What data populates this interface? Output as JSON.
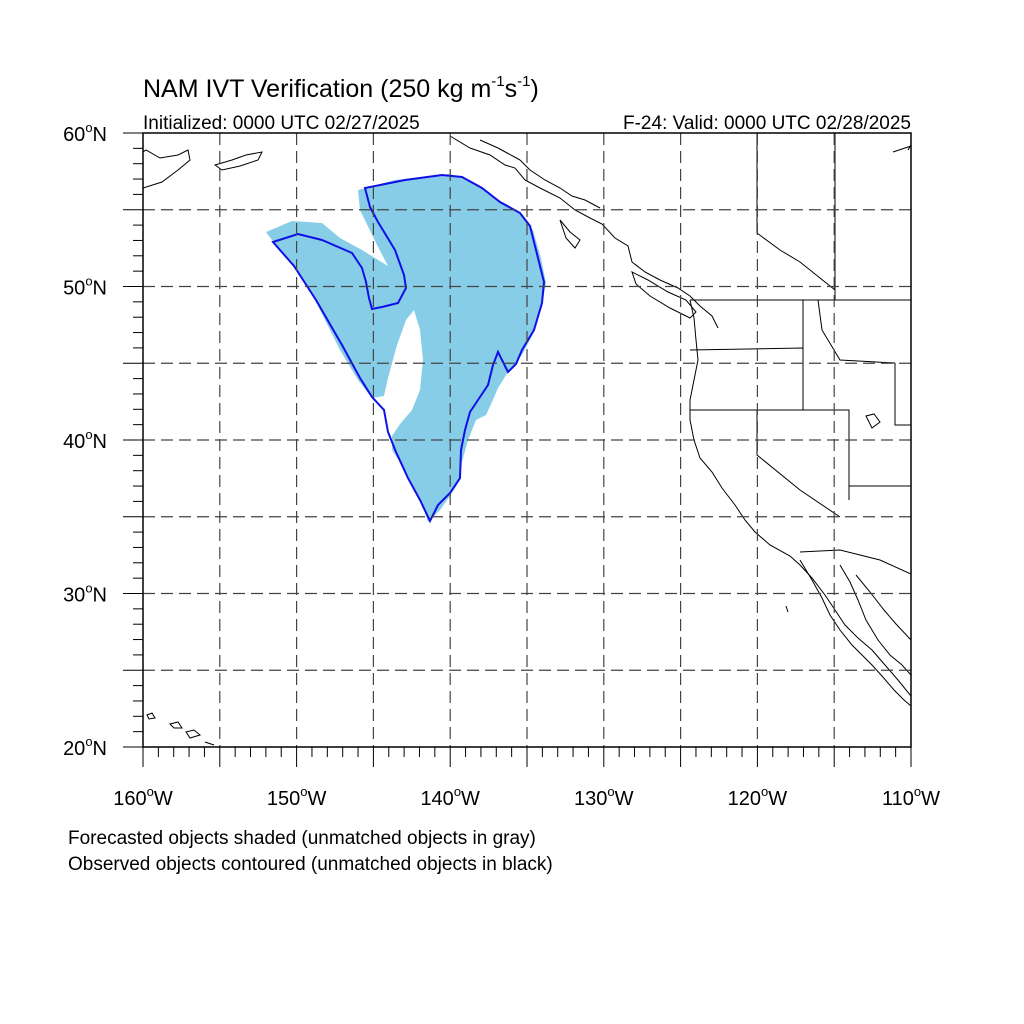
{
  "title": {
    "main": "NAM IVT Verification (250 kg m",
    "sup1": "-1",
    "mid": "s",
    "sup2": "-1",
    "close": ")"
  },
  "initialized": "Initialized: 0000 UTC 02/27/2025",
  "valid": "F-24: Valid: 0000 UTC 02/28/2025",
  "map": {
    "lon_range": [
      -160,
      -110
    ],
    "lat_range": [
      20,
      60
    ],
    "lon_labels": [
      "160",
      "150",
      "140",
      "130",
      "120",
      "110"
    ],
    "lat_labels": [
      "20",
      "30",
      "40",
      "50",
      "60"
    ],
    "lon_suffix": "W",
    "lat_suffix": "N",
    "degree": "o",
    "grid": "dashed",
    "colors": {
      "forecast_fill": "#87cde8",
      "observed_contour": "#1010e6",
      "coastline": "#000000",
      "grid": "#444444"
    },
    "forecast_object_label": "matched forecast object (shaded)",
    "observed_object_label": "matched observed object (contoured)"
  },
  "legend": {
    "line1": "Forecasted objects shaded (unmatched objects in gray)",
    "line2": "Observed objects contoured (unmatched objects in black)"
  }
}
